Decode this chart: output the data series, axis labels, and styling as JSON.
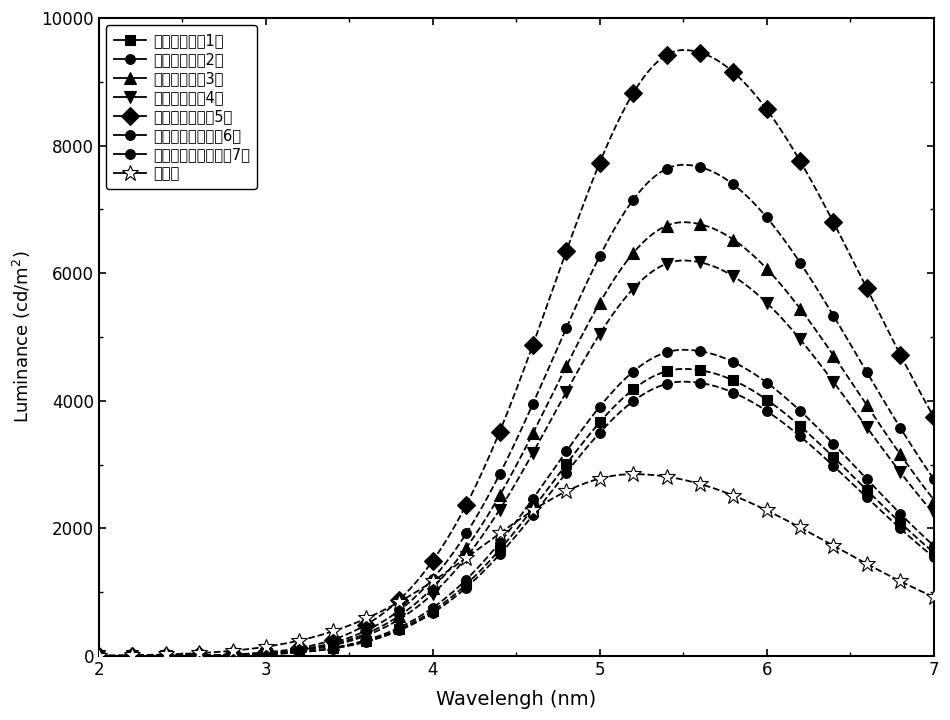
{
  "xlabel": "Wavelengh (nm)",
  "ylabel": "Luminance (cd/m²)",
  "xlim": [
    2,
    7
  ],
  "ylim": [
    0,
    10000
  ],
  "xticks": [
    2,
    3,
    4,
    5,
    6,
    7
  ],
  "yticks": [
    0,
    2000,
    4000,
    6000,
    8000,
    10000
  ],
  "labels": [
    "油酸（实施例1）",
    "辛酸（实施例2）",
    "己酸（实施例3）",
    "丁酸（实施例4）",
    "异辛酸（实施例5）",
    "己基葨酸（实施例6）",
    "正己基葨酸（实施例7）",
    "对照组"
  ],
  "markers": [
    "s",
    "o",
    "^",
    "v",
    "D",
    "o",
    "o",
    "*"
  ],
  "marker_filled": [
    true,
    true,
    true,
    true,
    true,
    true,
    true,
    false
  ],
  "marker_sizes": [
    7,
    7,
    8,
    8,
    9,
    7,
    7,
    12
  ],
  "series_params": [
    [
      4500,
      5.5,
      0.78,
      1.05
    ],
    [
      7700,
      5.5,
      0.78,
      1.05
    ],
    [
      6800,
      5.5,
      0.78,
      1.05
    ],
    [
      6200,
      5.5,
      0.78,
      1.05
    ],
    [
      9500,
      5.5,
      0.78,
      1.1
    ],
    [
      4800,
      5.5,
      0.78,
      1.05
    ],
    [
      4300,
      5.5,
      0.78,
      1.05
    ],
    [
      2850,
      5.2,
      0.9,
      1.2
    ]
  ],
  "linewidth": 1.3,
  "figsize": [
    9.5,
    7.2
  ],
  "dpi": 100
}
